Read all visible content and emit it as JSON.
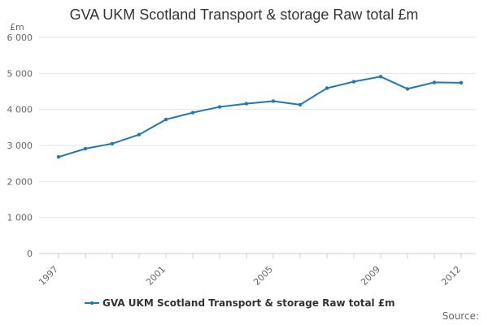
{
  "chart_data": {
    "type": "line",
    "title": "GVA UKM Scotland Transport & storage Raw total £m",
    "ylabel": "£m",
    "xlabel": "",
    "ylim": [
      0,
      6000
    ],
    "yticks": [
      0,
      1000,
      2000,
      3000,
      4000,
      5000,
      6000
    ],
    "ytick_labels": [
      "0",
      "1 000",
      "2 000",
      "3 000",
      "4 000",
      "5 000",
      "6 000"
    ],
    "x": [
      1997,
      1998,
      1999,
      2000,
      2001,
      2002,
      2003,
      2004,
      2005,
      2006,
      2007,
      2008,
      2009,
      2010,
      2011,
      2012
    ],
    "xticks": [
      1997,
      2001,
      2005,
      2009,
      2012
    ],
    "xtick_labels": [
      "1997",
      "2001",
      "2005",
      "2009",
      "2012"
    ],
    "grid": true,
    "legend": "bottom",
    "series": [
      {
        "name": "GVA UKM Scotland Transport & storage Raw total £m",
        "color": "#1f78b4",
        "values": [
          2680,
          2910,
          3050,
          3300,
          3720,
          3910,
          4070,
          4160,
          4230,
          4130,
          4590,
          4770,
          4910,
          4570,
          4750,
          4740
        ]
      }
    ]
  },
  "source_label": "Source:"
}
